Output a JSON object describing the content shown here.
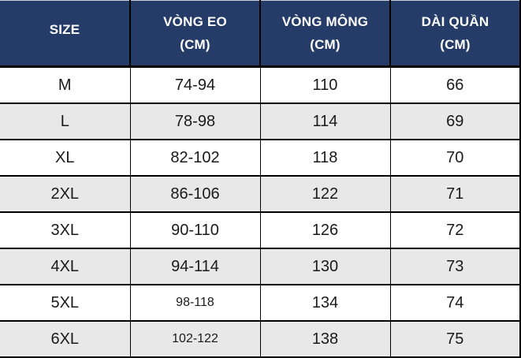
{
  "chart_data": {
    "type": "table",
    "title": "Size chart (garment measurements)",
    "columns": [
      {
        "line1": "SIZE",
        "line2": ""
      },
      {
        "line1": "VÒNG EO",
        "line2": "(CM)"
      },
      {
        "line1": "VÒNG MÔNG",
        "line2": "(CM)"
      },
      {
        "line1": "DÀI QUẦN",
        "line2": "(CM)"
      }
    ],
    "rows": [
      {
        "size": "M",
        "waist_cm": "74-94",
        "hip_cm": "110",
        "length_cm": "66"
      },
      {
        "size": "L",
        "waist_cm": "78-98",
        "hip_cm": "114",
        "length_cm": "69"
      },
      {
        "size": "XL",
        "waist_cm": "82-102",
        "hip_cm": "118",
        "length_cm": "70"
      },
      {
        "size": "2XL",
        "waist_cm": "86-106",
        "hip_cm": "122",
        "length_cm": "71"
      },
      {
        "size": "3XL",
        "waist_cm": "90-110",
        "hip_cm": "126",
        "length_cm": "72"
      },
      {
        "size": "4XL",
        "waist_cm": "94-114",
        "hip_cm": "130",
        "length_cm": "73"
      },
      {
        "size": "5XL",
        "waist_cm": "98-118",
        "hip_cm": "134",
        "length_cm": "74"
      },
      {
        "size": "6XL",
        "waist_cm": "102-122",
        "hip_cm": "138",
        "length_cm": "75"
      }
    ]
  },
  "colors": {
    "header_bg": "#253c68",
    "header_text": "#ffffff",
    "row_bg": "#ffffff",
    "row_alt_bg": "#e8e8e8",
    "border": "#000000",
    "cell_text": "#1a1a1a"
  }
}
